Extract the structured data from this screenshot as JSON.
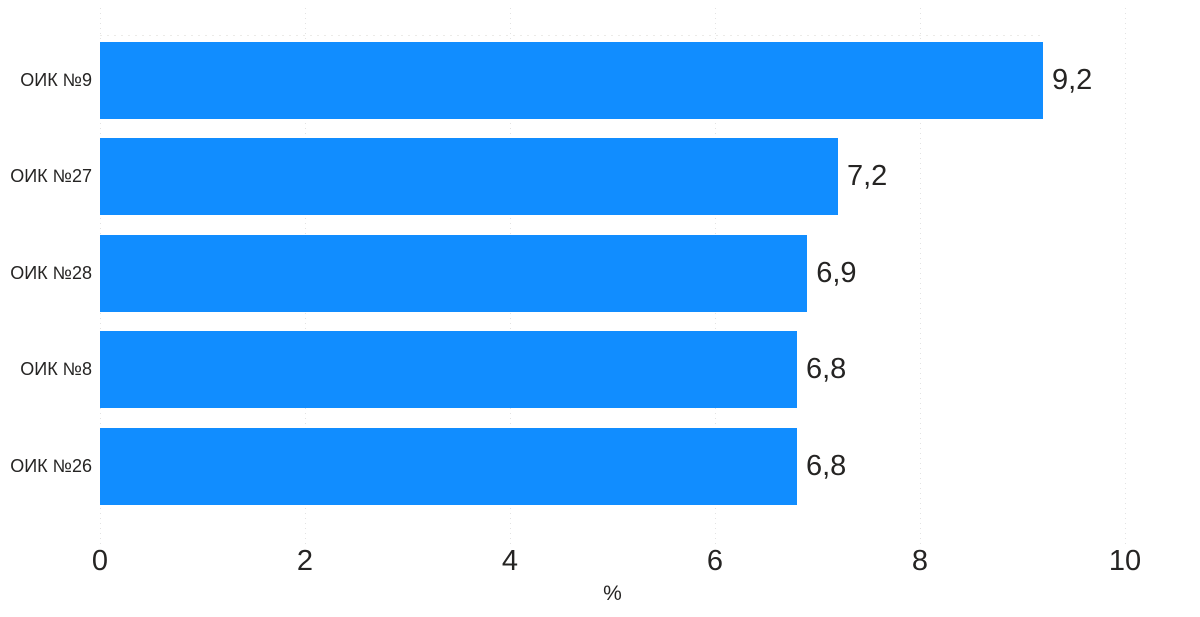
{
  "chart_data": {
    "type": "bar",
    "orientation": "horizontal",
    "title": "",
    "xlabel": "%",
    "ylabel": "",
    "categories": [
      "ОИК №9",
      "ОИК №27",
      "ОИК №28",
      "ОИК №8",
      "ОИК №26"
    ],
    "values": [
      9.2,
      7.2,
      6.9,
      6.8,
      6.8
    ],
    "value_labels": [
      "9,2",
      "7,2",
      "6,9",
      "6,8",
      "6,8"
    ],
    "xlim": [
      0,
      10
    ],
    "x_ticks": [
      0,
      2,
      4,
      6,
      8,
      10
    ],
    "x_tick_labels": [
      "0",
      "2",
      "4",
      "6",
      "8",
      "10"
    ],
    "grid": "vertical-dotted",
    "legend": "none",
    "colors": {
      "bar": "#118DFF",
      "text": "#252423",
      "gridline": "#e2e2e2",
      "background": "#ffffff"
    }
  }
}
